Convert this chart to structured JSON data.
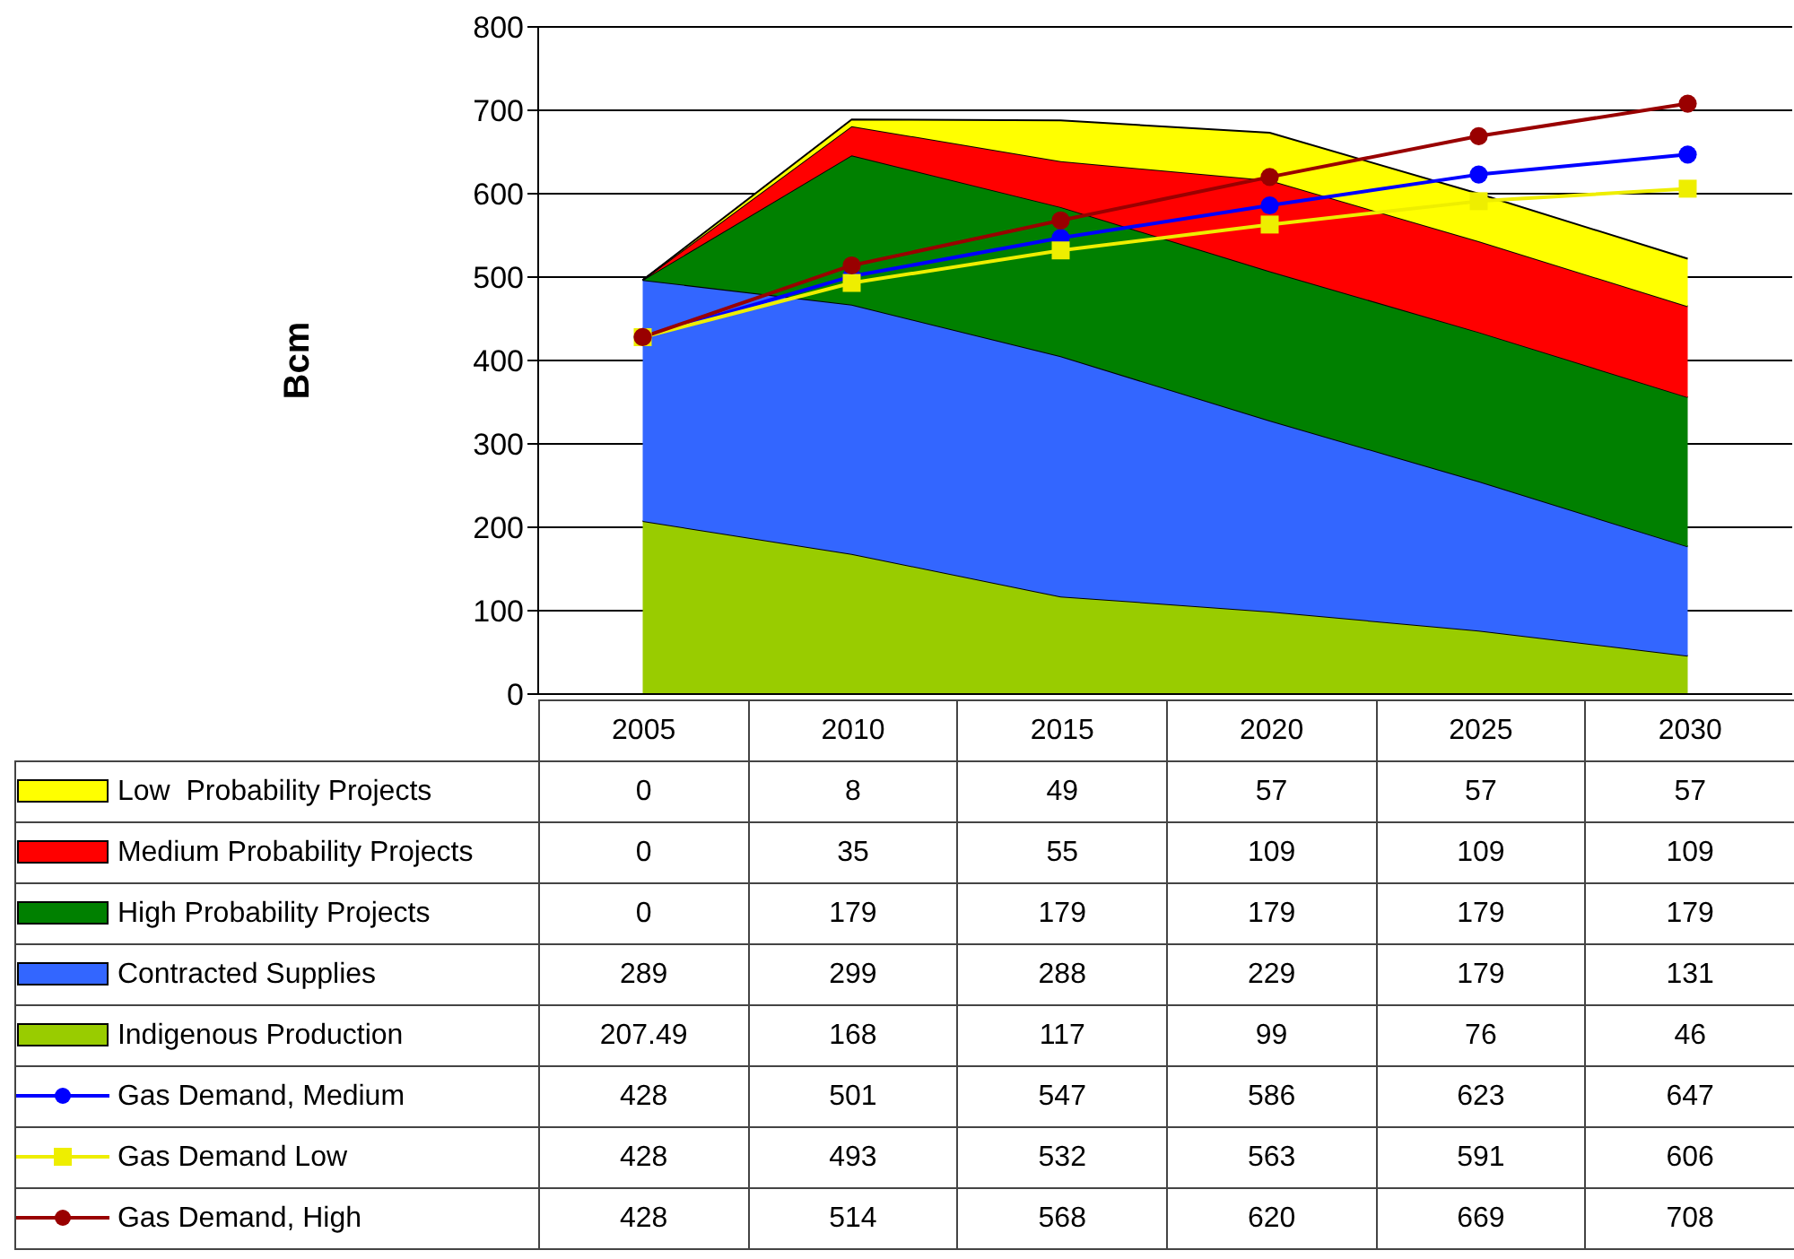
{
  "chart_data": {
    "type": "area",
    "stacked": true,
    "ylabel": "Bcm",
    "categories": [
      "2005",
      "2010",
      "2015",
      "2020",
      "2025",
      "2030"
    ],
    "ylim": [
      0,
      800
    ],
    "yticks": [
      0,
      100,
      200,
      300,
      400,
      500,
      600,
      700,
      800
    ],
    "grid": "y",
    "legend": "bottom",
    "data_labels": true,
    "series": [
      {
        "name": "Indigenous Production",
        "color": "#99cc00",
        "values": [
          207.49,
          168,
          117,
          99,
          76,
          46
        ]
      },
      {
        "name": "Contracted Supplies",
        "color": "#3366ff",
        "values": [
          289,
          299,
          288,
          229,
          179,
          131
        ]
      },
      {
        "name": "High Probability Projects",
        "color": "#008000",
        "values": [
          0,
          179,
          179,
          179,
          179,
          179
        ]
      },
      {
        "name": "Medium Probability Projects",
        "color": "#ff0000",
        "values": [
          0,
          35,
          55,
          109,
          109,
          109
        ]
      },
      {
        "name": "Low  Probability Projects",
        "color": "#ffff00",
        "values": [
          0,
          8,
          49,
          57,
          57,
          57
        ]
      },
      {
        "name": "Gas Demand, Medium",
        "type": "line",
        "marker": "circle",
        "color": "#0000ff",
        "values": [
          428,
          501,
          547,
          586,
          623,
          647
        ]
      },
      {
        "name": "Gas Demand Low",
        "type": "line",
        "marker": "square",
        "color": "#eeee00",
        "values": [
          428,
          493,
          532,
          563,
          591,
          606
        ]
      },
      {
        "name": "Gas Demand, High",
        "type": "line",
        "marker": "circle",
        "color": "#990000",
        "values": [
          428,
          514,
          568,
          620,
          669,
          708
        ]
      }
    ]
  }
}
